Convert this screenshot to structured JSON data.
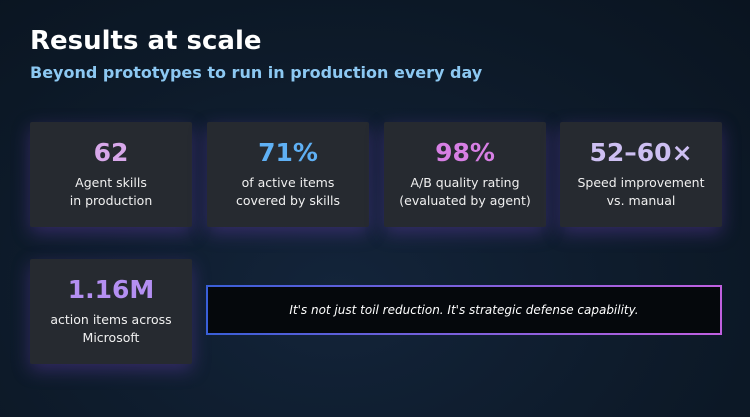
{
  "header": {
    "title": "Results at scale",
    "subtitle": "Beyond prototypes to run in production every day"
  },
  "stats": [
    {
      "value": "62",
      "label": [
        "Agent skills",
        "in production"
      ],
      "color": "#d8a8ea"
    },
    {
      "value": "71%",
      "label": [
        "of active items",
        "covered by skills"
      ],
      "color": "#5fb0f4"
    },
    {
      "value": "98%",
      "label": [
        "A/B quality rating",
        "(evaluated by agent)"
      ],
      "color": "#d77fe4"
    },
    {
      "value": "52–60×",
      "label": [
        "Speed improvement",
        "vs. manual"
      ],
      "color": "#cdbff2"
    },
    {
      "value": "1.16M",
      "label": [
        "action items across",
        "Microsoft"
      ],
      "color": "#b48ff2"
    }
  ],
  "quote": "It's not just toil reduction. It's strategic defense capability."
}
